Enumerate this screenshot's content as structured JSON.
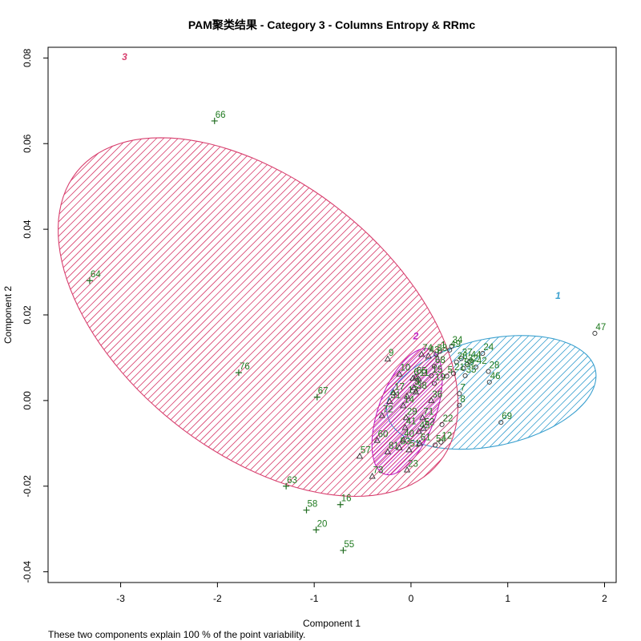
{
  "chart_data": {
    "type": "scatter",
    "title": "PAM聚类结果 - Category  3  - Columns  Entropy  &  RRmc",
    "xlabel": "Component 1",
    "ylabel": "Component 2",
    "subtitle": "These two components explain 100 % of the point variability.",
    "xlim": [
      -3.75,
      2.12
    ],
    "ylim": [
      -0.0425,
      0.0825
    ],
    "xticks": [
      -3,
      -2,
      -1,
      0,
      1,
      2
    ],
    "yticks": [
      -0.04,
      -0.02,
      0.0,
      0.02,
      0.04,
      0.06,
      0.08
    ],
    "ytick_labels": [
      "-0.04",
      "-0.02",
      "0.00",
      "0.02",
      "0.04",
      "0.06",
      "0.08"
    ],
    "clusters": [
      {
        "id": "1",
        "color": "#3aa0cf",
        "marker": "circle",
        "ellipse": {
          "cx": 0.83,
          "cy": 0.0019,
          "rx": 1.1,
          "ry": 0.0125,
          "tilt": 0.21
        },
        "label_pos": [
          1.52,
          0.0237
        ]
      },
      {
        "id": "2",
        "color": "#c11ec1",
        "marker": "triangle",
        "ellipse": {
          "cx": -0.04,
          "cy": -0.0026,
          "rx": 0.295,
          "ry": 0.0155,
          "tilt": -0.35
        },
        "label_pos": [
          0.05,
          0.0143
        ]
      },
      {
        "id": "3",
        "color": "#d8406f",
        "marker": "plus",
        "ellipse": {
          "cx": -1.58,
          "cy": 0.0195,
          "rx": 2.4,
          "ry": 0.0315,
          "tilt": -0.675
        },
        "label_pos": [
          -2.96,
          0.0795
        ]
      }
    ],
    "points": [
      {
        "label": "66",
        "x": -2.03,
        "y": 0.0653,
        "cluster": "3"
      },
      {
        "label": "64",
        "x": -3.32,
        "y": 0.028,
        "cluster": "3"
      },
      {
        "label": "76",
        "x": -1.78,
        "y": 0.0065,
        "cluster": "3"
      },
      {
        "label": "67",
        "x": -0.97,
        "y": 0.0008,
        "cluster": "3"
      },
      {
        "label": "63",
        "x": -1.29,
        "y": -0.02,
        "cluster": "3"
      },
      {
        "label": "58",
        "x": -1.08,
        "y": -0.0256,
        "cluster": "3"
      },
      {
        "label": "16",
        "x": -0.73,
        "y": -0.0243,
        "cluster": "3"
      },
      {
        "label": "20",
        "x": -0.98,
        "y": -0.0302,
        "cluster": "3"
      },
      {
        "label": "55",
        "x": -0.7,
        "y": -0.035,
        "cluster": "3"
      },
      {
        "label": "47",
        "x": 1.9,
        "y": 0.0157,
        "cluster": "1"
      },
      {
        "label": "69",
        "x": 0.93,
        "y": -0.0051,
        "cluster": "1"
      },
      {
        "label": "24",
        "x": 0.74,
        "y": 0.011,
        "cluster": "1"
      },
      {
        "label": "28",
        "x": 0.8,
        "y": 0.0068,
        "cluster": "1"
      },
      {
        "label": "46",
        "x": 0.81,
        "y": 0.0043,
        "cluster": "1"
      },
      {
        "label": "42",
        "x": 0.67,
        "y": 0.0078,
        "cluster": "1"
      },
      {
        "label": "22",
        "x": 0.32,
        "y": -0.0056,
        "cluster": "1"
      },
      {
        "label": "12",
        "x": 0.31,
        "y": -0.0097,
        "cluster": "1"
      },
      {
        "label": "54",
        "x": 0.25,
        "y": -0.0104,
        "cluster": "1"
      },
      {
        "label": "8",
        "x": 0.5,
        "y": -0.0011,
        "cluster": "1"
      },
      {
        "label": "7",
        "x": 0.5,
        "y": 0.0016,
        "cluster": "1"
      },
      {
        "label": "1",
        "x": 0.3,
        "y": 0.0115,
        "cluster": "1"
      },
      {
        "label": "34",
        "x": 0.42,
        "y": 0.0127,
        "cluster": "1"
      },
      {
        "label": "49",
        "x": 0.4,
        "y": 0.0118,
        "cluster": "1"
      },
      {
        "label": "37",
        "x": 0.52,
        "y": 0.0098,
        "cluster": "1"
      },
      {
        "label": "26",
        "x": 0.47,
        "y": 0.009,
        "cluster": "1"
      },
      {
        "label": "44",
        "x": 0.61,
        "y": 0.0092,
        "cluster": "1"
      },
      {
        "label": "32",
        "x": 0.58,
        "y": 0.0084,
        "cluster": "1"
      },
      {
        "label": "59",
        "x": 0.54,
        "y": 0.0075,
        "cluster": "1"
      },
      {
        "label": "21",
        "x": 0.44,
        "y": 0.0063,
        "cluster": "1"
      },
      {
        "label": "35",
        "x": 0.56,
        "y": 0.0058,
        "cluster": "1"
      },
      {
        "label": "68",
        "x": 0.24,
        "y": 0.008,
        "cluster": "1"
      },
      {
        "label": "33",
        "x": 0.26,
        "y": 0.0108,
        "cluster": "1"
      },
      {
        "label": "15",
        "x": 0.21,
        "y": 0.0058,
        "cluster": "1"
      },
      {
        "label": "19",
        "x": 0.24,
        "y": 0.004,
        "cluster": "1"
      },
      {
        "label": "5",
        "x": 0.37,
        "y": 0.0057,
        "cluster": "1"
      },
      {
        "label": "9",
        "x": -0.24,
        "y": 0.0097,
        "cluster": "2"
      },
      {
        "label": "10",
        "x": -0.12,
        "y": 0.0062,
        "cluster": "2"
      },
      {
        "label": "74",
        "x": 0.11,
        "y": 0.0108,
        "cluster": "2"
      },
      {
        "label": "43",
        "x": 0.18,
        "y": 0.0104,
        "cluster": "2"
      },
      {
        "label": "65",
        "x": 0.05,
        "y": 0.0055,
        "cluster": "2"
      },
      {
        "label": "6",
        "x": 0.02,
        "y": 0.0052,
        "cluster": "2"
      },
      {
        "label": "11",
        "x": 0.08,
        "y": 0.005,
        "cluster": "2"
      },
      {
        "label": "17",
        "x": -0.18,
        "y": 0.0018,
        "cluster": "2"
      },
      {
        "label": "3",
        "x": 0.03,
        "y": 0.003,
        "cluster": "2"
      },
      {
        "label": "13",
        "x": -0.04,
        "y": 0.001,
        "cluster": "2"
      },
      {
        "label": "38",
        "x": 0.05,
        "y": 0.002,
        "cluster": "2"
      },
      {
        "label": "36",
        "x": 0.21,
        "y": 0.0,
        "cluster": "2"
      },
      {
        "label": "31",
        "x": -0.22,
        "y": -0.0002,
        "cluster": "2"
      },
      {
        "label": "14",
        "x": -0.08,
        "y": -0.0012,
        "cluster": "2"
      },
      {
        "label": "72",
        "x": -0.3,
        "y": -0.0035,
        "cluster": "2"
      },
      {
        "label": "29",
        "x": -0.05,
        "y": -0.004,
        "cluster": "2"
      },
      {
        "label": "71",
        "x": 0.12,
        "y": -0.004,
        "cluster": "2"
      },
      {
        "label": "60",
        "x": -0.35,
        "y": -0.0093,
        "cluster": "2"
      },
      {
        "label": "41",
        "x": -0.06,
        "y": -0.0063,
        "cluster": "2"
      },
      {
        "label": "45",
        "x": 0.08,
        "y": -0.0072,
        "cluster": "2"
      },
      {
        "label": "52",
        "x": 0.13,
        "y": -0.0065,
        "cluster": "2"
      },
      {
        "label": "40",
        "x": -0.08,
        "y": -0.0092,
        "cluster": "2"
      },
      {
        "label": "53",
        "x": -0.12,
        "y": -0.011,
        "cluster": "2"
      },
      {
        "label": "81",
        "x": -0.24,
        "y": -0.012,
        "cluster": "2"
      },
      {
        "label": "51",
        "x": -0.02,
        "y": -0.0115,
        "cluster": "2"
      },
      {
        "label": "61",
        "x": 0.09,
        "y": -0.01,
        "cluster": "2"
      },
      {
        "label": "57",
        "x": -0.53,
        "y": -0.013,
        "cluster": "2"
      },
      {
        "label": "73",
        "x": -0.4,
        "y": -0.0177,
        "cluster": "2"
      },
      {
        "label": "23",
        "x": -0.04,
        "y": -0.0162,
        "cluster": "2"
      }
    ]
  }
}
